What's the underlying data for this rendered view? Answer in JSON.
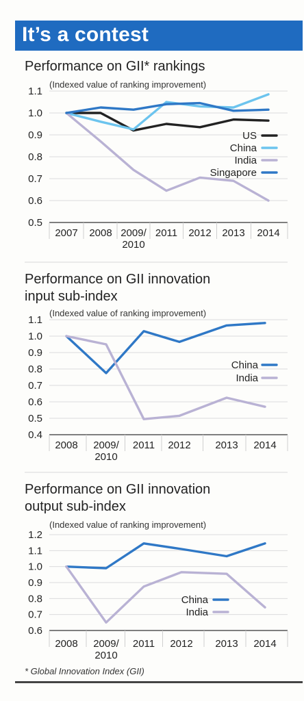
{
  "header": {
    "title": "It’s a contest"
  },
  "footnote": "* Global Innovation Index (GII)",
  "colors": {
    "US": "#222222",
    "China": "#6cc4ee",
    "India": "#b9b2d4",
    "Singapore": "#2f78c6",
    "China_dark": "#2f78c6"
  },
  "chart_data": [
    {
      "type": "line",
      "title": "Performance on GII* rankings",
      "subtitle": "(Indexed value of ranking improvement)",
      "categories": [
        "2007",
        "2008",
        "2009/\n2010",
        "2011",
        "2012",
        "2013",
        "2014"
      ],
      "ylim": [
        0.5,
        1.1
      ],
      "yticks": [
        0.5,
        0.6,
        0.7,
        0.8,
        0.9,
        1.0,
        1.1
      ],
      "ytick_labels": [
        "0.5",
        "0.6",
        "0.7",
        "0.8",
        "0.9",
        "1.0",
        "1.1"
      ],
      "legend_position": "right",
      "series": [
        {
          "name": "US",
          "color_key": "US",
          "values": [
            1.0,
            1.0,
            0.92,
            0.95,
            0.935,
            0.97,
            0.965
          ]
        },
        {
          "name": "China",
          "color_key": "China",
          "values": [
            1.0,
            0.96,
            0.925,
            1.05,
            1.03,
            1.025,
            1.085
          ]
        },
        {
          "name": "India",
          "color_key": "India",
          "values": [
            1.0,
            0.87,
            0.74,
            0.645,
            0.705,
            0.69,
            0.6
          ]
        },
        {
          "name": "Singapore",
          "color_key": "Singapore",
          "values": [
            1.0,
            1.025,
            1.015,
            1.04,
            1.045,
            1.01,
            1.015
          ]
        }
      ]
    },
    {
      "type": "line",
      "title": "Performance on GII innovation\ninput sub-index",
      "subtitle": "(Indexed value of ranking improvement)",
      "categories": [
        "2008",
        "2009/\n2010",
        "2011",
        "2012",
        "2013",
        "2014"
      ],
      "ylim": [
        0.4,
        1.1
      ],
      "yticks": [
        0.4,
        0.5,
        0.6,
        0.7,
        0.8,
        0.9,
        1.0,
        1.1
      ],
      "ytick_labels": [
        "0.4",
        "0.5",
        "0.6",
        "0.7",
        "0.8",
        "0.9",
        "1.0",
        "1.1"
      ],
      "legend_position": "right",
      "series": [
        {
          "name": "China",
          "color_key": "China_dark",
          "values": [
            1.0,
            0.775,
            1.03,
            0.965,
            1.065,
            1.08
          ]
        },
        {
          "name": "India",
          "color_key": "India",
          "values": [
            1.0,
            0.95,
            0.495,
            0.515,
            0.625,
            0.57
          ]
        }
      ]
    },
    {
      "type": "line",
      "title": "Performance on GII innovation\noutput sub-index",
      "subtitle": "(Indexed value of ranking improvement)",
      "categories": [
        "2008",
        "2009/\n2010",
        "2011",
        "2012",
        "2013",
        "2014"
      ],
      "ylim": [
        0.6,
        1.2
      ],
      "yticks": [
        0.6,
        0.7,
        0.8,
        0.9,
        1.0,
        1.1,
        1.2
      ],
      "ytick_labels": [
        "0.6",
        "0.7",
        "0.8",
        "0.9",
        "1.0",
        "1.1",
        "1.2"
      ],
      "legend_position": "right",
      "series": [
        {
          "name": "China",
          "color_key": "China_dark",
          "values": [
            1.0,
            0.99,
            1.145,
            1.11,
            1.065,
            1.145
          ]
        },
        {
          "name": "India",
          "color_key": "India",
          "values": [
            1.0,
            0.65,
            0.875,
            0.965,
            0.955,
            0.745
          ]
        }
      ]
    }
  ]
}
